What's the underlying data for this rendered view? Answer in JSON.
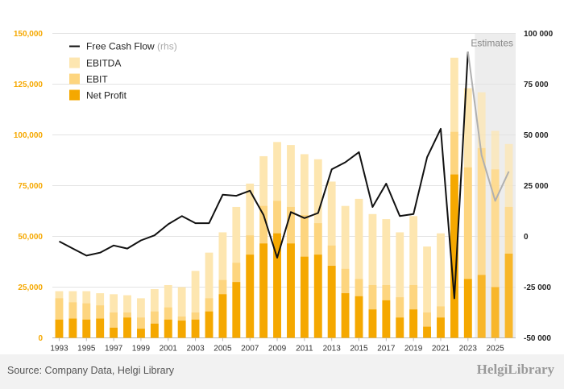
{
  "chart_data": {
    "type": "bar",
    "x_start": 1993,
    "x_end": 2026,
    "x_tick_labels": [
      "1993",
      "1995",
      "1997",
      "1999",
      "2001",
      "2003",
      "2005",
      "2007",
      "2009",
      "2011",
      "2013",
      "2015",
      "2017",
      "2019",
      "2021",
      "2023",
      "2025"
    ],
    "left_axis": {
      "min": 0,
      "max": 150000,
      "ticks": [
        "0",
        "25,000",
        "50,000",
        "75,000",
        "100,000",
        "125,000",
        "150,000"
      ]
    },
    "right_axis": {
      "min": -50000,
      "max": 100000,
      "ticks": [
        "-50 000",
        "-25 000",
        "0",
        "25 000",
        "50 000",
        "75 000",
        "100 000"
      ]
    },
    "estimates_label": "Estimates",
    "estimates_from": 2024,
    "grid": true,
    "legend_position": "top-left",
    "series": [
      {
        "name": "EBITDA",
        "axis": "left",
        "color": "#fde6b0",
        "values": [
          23000,
          23000,
          23000,
          22000,
          21500,
          21000,
          19500,
          24000,
          26000,
          25000,
          33000,
          42000,
          52000,
          64500,
          76000,
          89500,
          96500,
          95000,
          90500,
          88000,
          77000,
          65000,
          68500,
          61000,
          58500,
          52000,
          60000,
          45000,
          51500,
          138000,
          123000,
          121000,
          102000,
          95500
        ]
      },
      {
        "name": "EBIT",
        "axis": "left",
        "color": "#fdd57f",
        "values": [
          19500,
          17500,
          17000,
          16000,
          12500,
          12500,
          10000,
          13000,
          15000,
          10500,
          12500,
          19500,
          28500,
          37000,
          50500,
          65000,
          67500,
          64500,
          60500,
          56500,
          45500,
          34000,
          29000,
          26000,
          26000,
          20000,
          26000,
          12500,
          15500,
          101500,
          84000,
          93500,
          83000,
          64500
        ]
      },
      {
        "name": "Net Profit",
        "axis": "left",
        "color": "#f5a800",
        "values": [
          9000,
          9500,
          9000,
          9500,
          5000,
          10000,
          4500,
          7000,
          9000,
          8500,
          9000,
          13000,
          21500,
          27500,
          41000,
          46500,
          51500,
          46500,
          40000,
          41000,
          35500,
          22000,
          20500,
          14000,
          18500,
          10000,
          14000,
          5500,
          10000,
          80500,
          29000,
          31000,
          25000,
          41500
        ]
      },
      {
        "name": "Free Cash Flow",
        "axis": "right",
        "color": "#111111",
        "estimate_color": "#b0b0b0",
        "values": [
          -2500,
          -6000,
          -9500,
          -8000,
          -4500,
          -6000,
          -2000,
          500,
          6000,
          10000,
          6500,
          6500,
          20500,
          20000,
          22500,
          10500,
          -10500,
          12000,
          9000,
          11500,
          33000,
          36500,
          41500,
          14500,
          26000,
          10000,
          11000,
          39000,
          53000,
          -30500,
          91000,
          40000,
          17500,
          32000
        ]
      }
    ]
  },
  "footer": {
    "source": "Source: Company Data, Helgi Library",
    "brand": "HelgiLibrary"
  }
}
